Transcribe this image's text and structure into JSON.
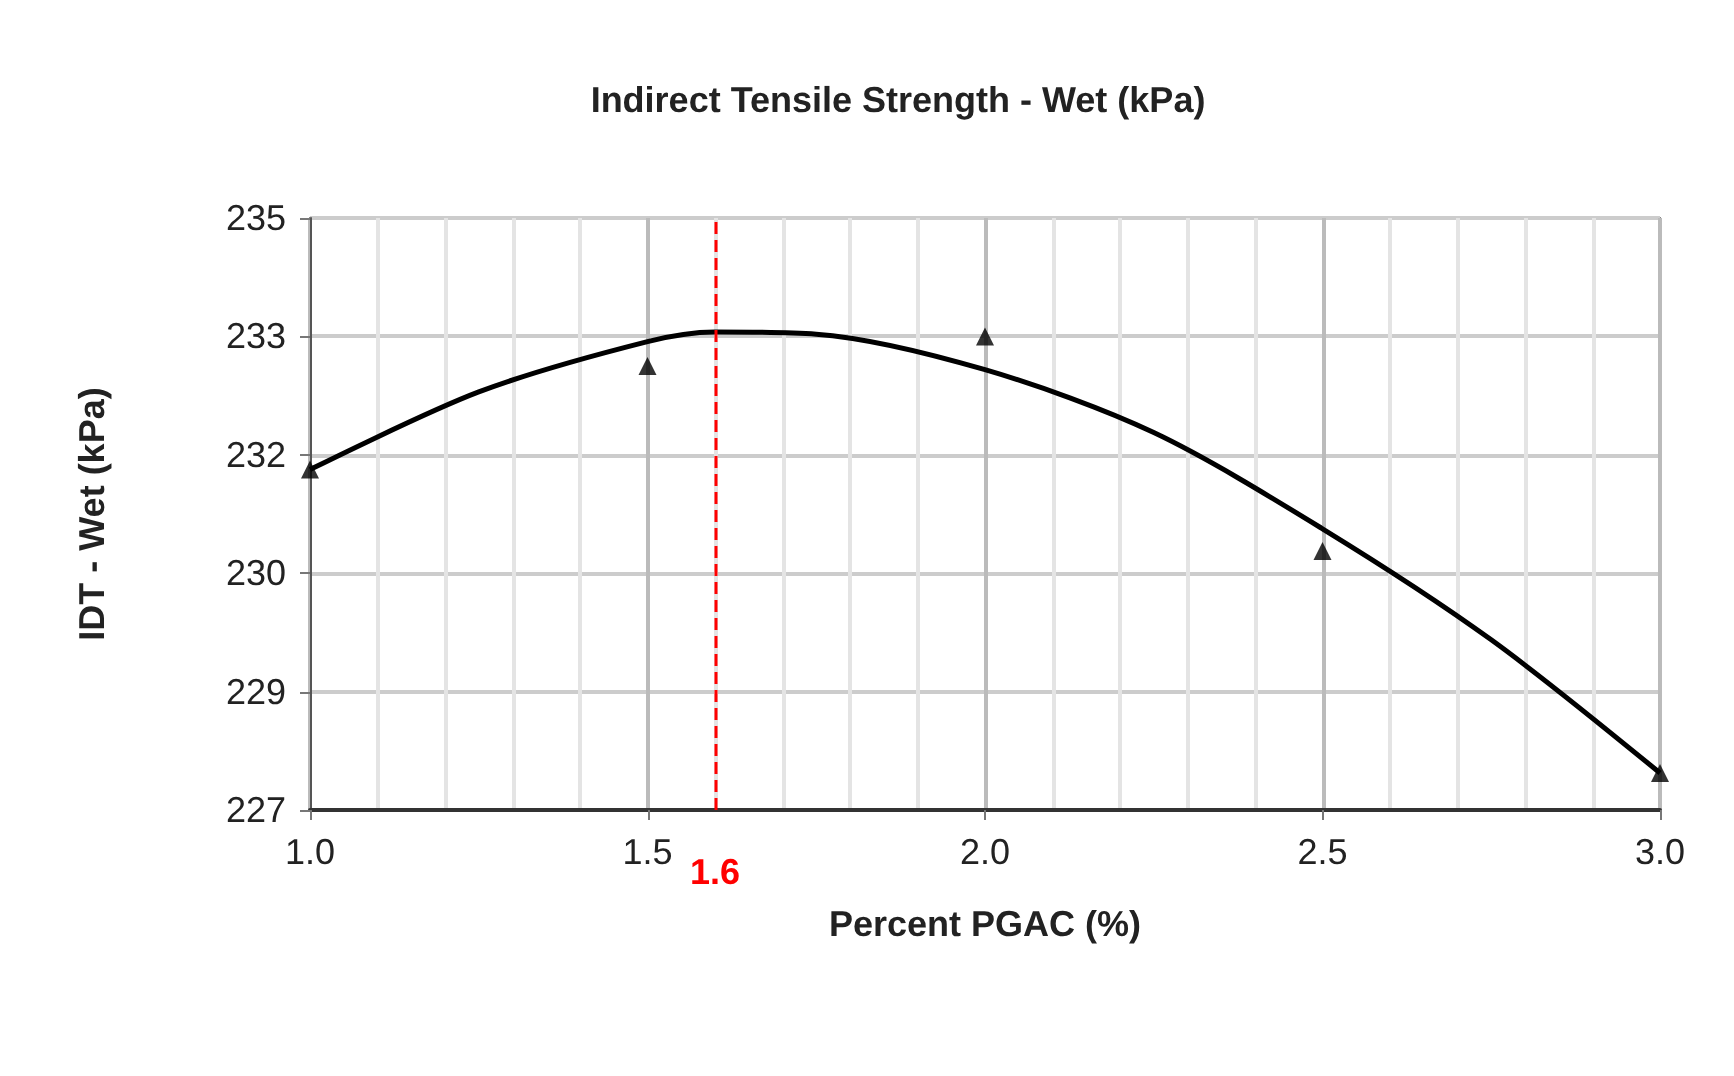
{
  "chart_data": {
    "type": "scatter",
    "title": "Indirect Tensile Strength - Wet (kPa)",
    "xlabel": "Percent PGAC (%)",
    "ylabel": "IDT - Wet (kPa)",
    "x": [
      1.0,
      1.5,
      2.0,
      2.5,
      3.0
    ],
    "series": [
      {
        "color": "#000000",
        "marker": "triangle",
        "values": [
          231.6,
          233.0,
          233.4,
          230.5,
          227.5
        ]
      },
      {
        "type": "line",
        "color": "#000000",
        "marker": "none",
        "x": [
          1.0,
          1.25,
          1.5,
          1.6,
          1.75,
          2.0,
          2.25,
          2.5,
          2.75,
          3.0
        ],
        "values": [
          231.6,
          232.65,
          233.33,
          233.46,
          233.43,
          232.95,
          232.1,
          230.8,
          229.3,
          227.5
        ]
      }
    ],
    "xlim": [
      1.0,
      3.0
    ],
    "xticks": [
      {
        "value": 1.0,
        "label": "1.0"
      },
      {
        "value": 1.5,
        "label": "1.5"
      },
      {
        "value": 2.0,
        "label": "2.0"
      },
      {
        "value": 2.5,
        "label": "2.5"
      },
      {
        "value": 3.0,
        "label": "3.0"
      }
    ],
    "ylim": [
      227,
      235
    ],
    "yticks": [
      {
        "value": 227,
        "label": "227"
      },
      {
        "value": 228.6,
        "label": "229"
      },
      {
        "value": 230.2,
        "label": "230"
      },
      {
        "value": 231.8,
        "label": "232"
      },
      {
        "value": 233.4,
        "label": "233"
      },
      {
        "value": 235,
        "label": "235"
      }
    ],
    "grid": true,
    "ref_lines": [
      {
        "axis": "x",
        "value": 1.6,
        "label": "1.6",
        "color": "#ff0000",
        "line_style": "dashed"
      }
    ]
  }
}
